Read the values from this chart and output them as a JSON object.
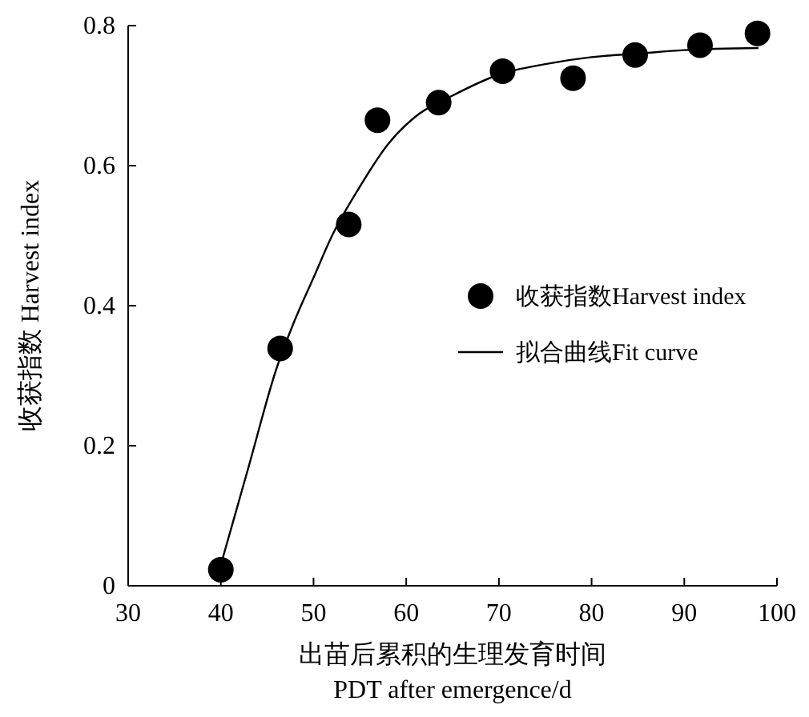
{
  "chart_data": {
    "type": "scatter",
    "xlabel": "出苗后累积的生理发育时间\nPDT after emergence/d",
    "ylabel": "收获指数 Harvest index",
    "xlim": [
      30,
      100
    ],
    "xticks": [
      30,
      40,
      50,
      60,
      70,
      80,
      90,
      100
    ],
    "ylim": [
      0,
      0.8
    ],
    "yticks": [
      0,
      0.2,
      0.4,
      0.6,
      0.8
    ],
    "grid": false,
    "legend": "right",
    "series": [
      {
        "name": "收获指数Harvest index",
        "marker": "circle",
        "color": "#000000",
        "x": [
          40,
          46.4,
          53.8,
          56.9,
          63.5,
          70.4,
          78,
          84.7,
          91.7,
          97.9
        ],
        "values": [
          0.023,
          0.339,
          0.516,
          0.665,
          0.69,
          0.735,
          0.725,
          0.758,
          0.772,
          0.789
        ]
      },
      {
        "name": "拟合曲线Fit curve",
        "type": "line",
        "marker": "none",
        "color": "#000000",
        "line_style": "solid",
        "x": [
          40,
          43,
          46,
          48,
          50,
          52,
          55,
          58,
          61,
          65,
          70,
          75,
          80,
          85,
          90,
          98
        ],
        "values": [
          0.03,
          0.17,
          0.31,
          0.38,
          0.44,
          0.5,
          0.57,
          0.63,
          0.67,
          0.7,
          0.73,
          0.745,
          0.755,
          0.76,
          0.765,
          0.768
        ]
      }
    ]
  }
}
